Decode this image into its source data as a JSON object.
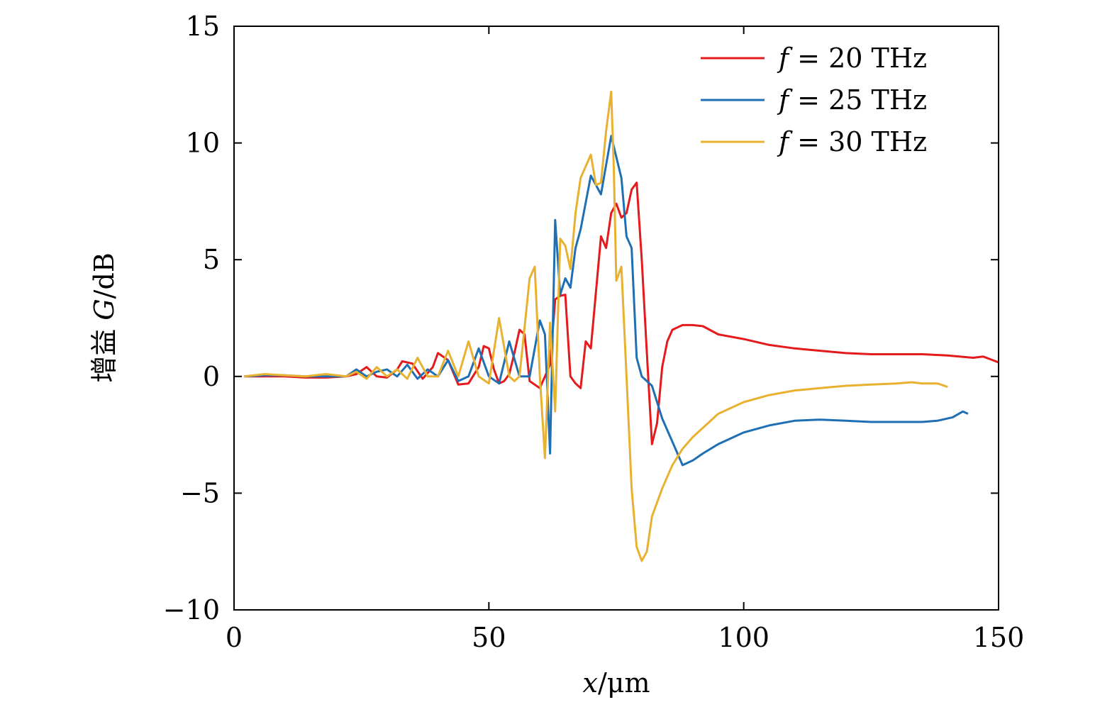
{
  "chart_data": {
    "type": "line",
    "xlabel": {
      "var": "x",
      "sep": "/",
      "unit": "μm"
    },
    "ylabel": {
      "prefix": "增益 ",
      "var": "G",
      "sep": "/",
      "unit": "dB"
    },
    "xlim": [
      0,
      150
    ],
    "ylim": [
      -10,
      15
    ],
    "xticks": [
      0,
      50,
      100,
      150
    ],
    "yticks": [
      -10,
      -5,
      0,
      5,
      10,
      15
    ],
    "xtick_labels": [
      "0",
      "50",
      "100",
      "150"
    ],
    "ytick_labels": [
      "−10",
      "−5",
      "0",
      "5",
      "10",
      "15"
    ],
    "grid": false,
    "legend_position": "top-right",
    "series": [
      {
        "name": "f = 20 THz",
        "legend": {
          "var": "f",
          "text": " = 20 THz"
        },
        "color": "#e41a1c",
        "x": [
          2,
          6,
          10,
          14,
          18,
          22,
          24,
          26,
          28,
          30,
          32,
          33,
          35,
          37,
          39,
          40,
          42,
          44,
          46,
          48,
          49,
          50,
          51,
          52,
          53,
          54,
          55,
          56,
          57,
          58,
          60,
          62,
          63,
          64,
          65,
          66,
          67,
          68,
          69,
          70,
          72,
          73,
          74,
          75,
          76,
          77,
          78,
          79,
          80,
          81,
          82,
          83,
          84,
          85,
          86,
          87,
          88,
          90,
          92,
          95,
          100,
          105,
          110,
          115,
          120,
          125,
          130,
          135,
          140,
          145,
          147,
          150
        ],
        "values": [
          0.0,
          0.0,
          0.0,
          -0.05,
          -0.05,
          0.0,
          0.1,
          0.4,
          0.0,
          -0.05,
          0.3,
          0.65,
          0.55,
          -0.1,
          0.4,
          1.0,
          0.7,
          -0.35,
          -0.3,
          0.4,
          1.3,
          1.2,
          0.3,
          -0.3,
          -0.2,
          0.1,
          1.0,
          2.0,
          1.8,
          -0.2,
          -0.5,
          0.5,
          3.3,
          3.45,
          3.5,
          0.0,
          -0.3,
          -0.5,
          1.5,
          1.2,
          6.0,
          5.5,
          7.0,
          7.4,
          6.8,
          7.0,
          8.0,
          8.3,
          5.0,
          1.0,
          -2.9,
          -2.0,
          0.4,
          1.5,
          2.0,
          2.1,
          2.2,
          2.2,
          2.15,
          1.8,
          1.6,
          1.35,
          1.2,
          1.1,
          1.0,
          0.95,
          0.95,
          0.95,
          0.9,
          0.8,
          0.85,
          0.6
        ]
      },
      {
        "name": "f = 25 THz",
        "legend": {
          "var": "f",
          "text": " = 25 THz"
        },
        "color": "#1f6fb4",
        "x": [
          2,
          6,
          10,
          14,
          18,
          22,
          24,
          26,
          28,
          30,
          32,
          34,
          36,
          38,
          40,
          42,
          44,
          46,
          48,
          50,
          52,
          54,
          56,
          58,
          60,
          61,
          62,
          63,
          64,
          65,
          66,
          67,
          68,
          70,
          72,
          74,
          76,
          77,
          78,
          79,
          80,
          82,
          84,
          86,
          88,
          90,
          92,
          95,
          100,
          105,
          110,
          115,
          120,
          125,
          130,
          135,
          138,
          141,
          143,
          144
        ],
        "values": [
          0.0,
          0.05,
          0.05,
          0.0,
          0.0,
          0.0,
          0.3,
          0.0,
          0.2,
          0.3,
          0.0,
          0.5,
          -0.1,
          0.3,
          0.0,
          0.7,
          -0.2,
          0.0,
          1.2,
          0.0,
          -0.3,
          1.5,
          0.0,
          0.0,
          2.4,
          1.8,
          -3.3,
          6.7,
          3.5,
          4.2,
          3.8,
          5.5,
          6.3,
          8.6,
          7.8,
          10.3,
          8.5,
          6.0,
          5.5,
          0.8,
          0.0,
          -0.4,
          -1.8,
          -2.8,
          -3.8,
          -3.6,
          -3.3,
          -2.9,
          -2.4,
          -2.1,
          -1.9,
          -1.85,
          -1.9,
          -1.95,
          -1.95,
          -1.95,
          -1.9,
          -1.75,
          -1.5,
          -1.6
        ]
      },
      {
        "name": "f = 30 THz",
        "legend": {
          "var": "f",
          "text": " = 30 THz"
        },
        "color": "#e8b230",
        "x": [
          2,
          6,
          10,
          14,
          18,
          22,
          24,
          26,
          28,
          30,
          32,
          34,
          36,
          38,
          40,
          42,
          44,
          46,
          48,
          50,
          52,
          54,
          55,
          56,
          58,
          59,
          60,
          61,
          62,
          63,
          64,
          65,
          66,
          67,
          68,
          69,
          70,
          71,
          72,
          73,
          74,
          74.5,
          75,
          76,
          77,
          78,
          79,
          80,
          81,
          82,
          84,
          86,
          88,
          90,
          92,
          95,
          100,
          105,
          110,
          115,
          120,
          125,
          130,
          133,
          135,
          138,
          140
        ],
        "values": [
          0.0,
          0.1,
          0.05,
          0.0,
          0.1,
          0.0,
          0.2,
          -0.1,
          0.4,
          0.0,
          0.3,
          -0.1,
          0.8,
          0.0,
          0.0,
          1.1,
          0.0,
          1.5,
          0.0,
          -0.3,
          2.5,
          0.0,
          -0.2,
          0.0,
          4.2,
          4.7,
          0.0,
          -3.5,
          2.3,
          -1.5,
          5.9,
          5.6,
          4.6,
          7.0,
          8.5,
          9.0,
          9.5,
          8.2,
          8.3,
          10.5,
          12.2,
          9.0,
          4.1,
          4.7,
          0.0,
          -4.8,
          -7.3,
          -7.9,
          -7.5,
          -6.0,
          -4.8,
          -3.8,
          -3.1,
          -2.6,
          -2.2,
          -1.6,
          -1.1,
          -0.8,
          -0.6,
          -0.5,
          -0.4,
          -0.35,
          -0.3,
          -0.25,
          -0.3,
          -0.3,
          -0.45
        ]
      }
    ]
  }
}
